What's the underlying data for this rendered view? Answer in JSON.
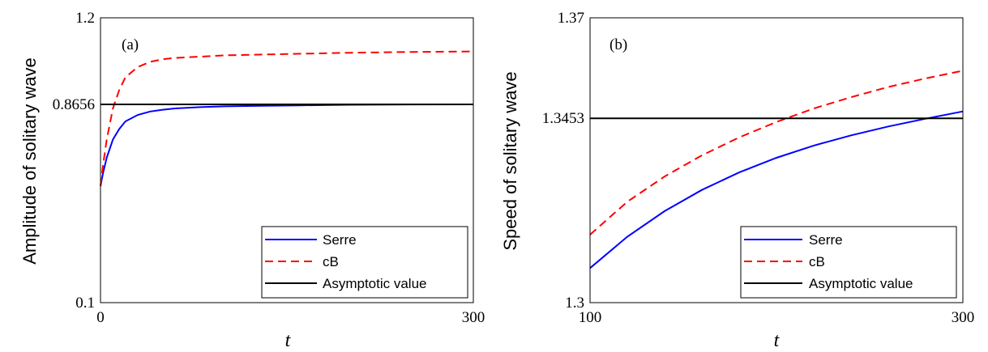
{
  "chart_data": [
    {
      "type": "line",
      "panel_label": "(a)",
      "xlabel": "t",
      "ylabel": "Amplitude of solitary wave",
      "xlim": [
        0,
        300
      ],
      "ylim": [
        0.1,
        1.2
      ],
      "x_ticks": [
        0,
        300
      ],
      "y_ticks": [
        0.1,
        0.8656,
        1.2
      ],
      "x_tick_labels": [
        "0",
        "300"
      ],
      "y_tick_labels": [
        "0.1",
        "0.8656",
        "1.2"
      ],
      "legend_position": "bottom-right",
      "series": [
        {
          "name": "Serre",
          "color": "#0000ff",
          "dash": "solid",
          "x": [
            0,
            2,
            5,
            10,
            15,
            20,
            30,
            40,
            50,
            60,
            80,
            100,
            130,
            160,
            200,
            250,
            300
          ],
          "y": [
            0.55,
            0.6,
            0.66,
            0.73,
            0.77,
            0.8,
            0.825,
            0.838,
            0.845,
            0.85,
            0.855,
            0.858,
            0.86,
            0.862,
            0.864,
            0.8652,
            0.8656
          ]
        },
        {
          "name": "cB",
          "color": "#ff0000",
          "dash": "dashed",
          "x": [
            0,
            2,
            5,
            10,
            15,
            20,
            30,
            40,
            50,
            60,
            80,
            100,
            150,
            200,
            250,
            300
          ],
          "y": [
            0.55,
            0.63,
            0.73,
            0.85,
            0.92,
            0.97,
            1.01,
            1.03,
            1.04,
            1.045,
            1.05,
            1.055,
            1.06,
            1.065,
            1.068,
            1.07
          ]
        },
        {
          "name": "Asymptotic value",
          "color": "#000000",
          "dash": "solid",
          "x": [
            0,
            300
          ],
          "y": [
            0.8656,
            0.8656
          ]
        }
      ]
    },
    {
      "type": "line",
      "panel_label": "(b)",
      "xlabel": "t",
      "ylabel": "Speed of solitary wave",
      "xlim": [
        100,
        300
      ],
      "ylim": [
        1.3,
        1.37
      ],
      "x_ticks": [
        100,
        300
      ],
      "y_ticks": [
        1.3,
        1.3453,
        1.37
      ],
      "x_tick_labels": [
        "100",
        "300"
      ],
      "y_tick_labels": [
        "1.3",
        "1.3453",
        "1.37"
      ],
      "legend_position": "bottom-right",
      "series": [
        {
          "name": "Serre",
          "color": "#0000ff",
          "dash": "solid",
          "x": [
            100,
            120,
            140,
            160,
            180,
            200,
            220,
            240,
            260,
            280,
            300
          ],
          "y": [
            1.3085,
            1.3162,
            1.3225,
            1.3277,
            1.332,
            1.3356,
            1.3386,
            1.3411,
            1.3433,
            1.3452,
            1.347
          ]
        },
        {
          "name": "cB",
          "color": "#ff0000",
          "dash": "dashed",
          "x": [
            100,
            120,
            140,
            160,
            180,
            200,
            220,
            240,
            260,
            280,
            300
          ],
          "y": [
            1.3167,
            1.3248,
            1.331,
            1.3362,
            1.3406,
            1.3444,
            1.3477,
            1.3505,
            1.353,
            1.3551,
            1.357
          ]
        },
        {
          "name": "Asymptotic value",
          "color": "#000000",
          "dash": "solid",
          "x": [
            100,
            300
          ],
          "y": [
            1.3453,
            1.3453
          ]
        }
      ]
    }
  ]
}
